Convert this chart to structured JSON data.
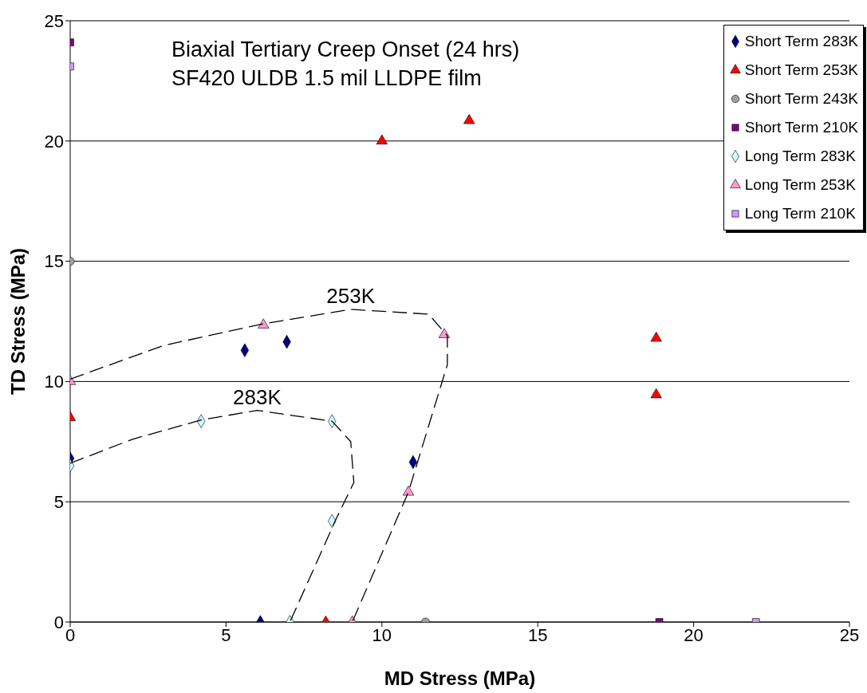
{
  "chart_data": {
    "type": "scatter",
    "title": "Biaxial Tertiary Creep Onset (24 hrs)",
    "subtitle": "SF420 ULDB 1.5 mil LLDPE film",
    "xlabel": "MD Stress (MPa)",
    "ylabel": "TD Stress (MPa)",
    "xlim": [
      0,
      25
    ],
    "xticks": [
      0,
      5,
      10,
      15,
      20,
      25
    ],
    "ylim": [
      0,
      25
    ],
    "yticks": [
      0,
      5,
      10,
      15,
      20,
      25
    ],
    "grid": "y",
    "legend": "top right",
    "series": [
      {
        "name": "Short Term 283K",
        "color": "#000080",
        "marker": "diamond",
        "x": [
          0,
          5.6,
          6.95,
          11.0,
          10.85,
          6.1
        ],
        "values": [
          6.8,
          11.3,
          11.65,
          6.65,
          null,
          0
        ]
      },
      {
        "name": "Short Term 253K",
        "color": "#ff0000",
        "marker": "triangle",
        "x": [
          0,
          10.0,
          12.8,
          18.8,
          18.8,
          8.2
        ],
        "values": [
          8.5,
          20.0,
          20.85,
          11.8,
          9.45,
          0
        ]
      },
      {
        "name": "Short Term 243K",
        "color": "#a0a0a0",
        "marker": "circle",
        "x": [
          0,
          11.4
        ],
        "values": [
          15.0,
          0
        ]
      },
      {
        "name": "Short Term 210K",
        "color": "#800080",
        "marker": "square",
        "x": [
          0,
          18.9
        ],
        "values": [
          24.1,
          0
        ]
      },
      {
        "name": "Long Term 283K",
        "color": "#ccffff",
        "marker": "diamond",
        "x": [
          0,
          4.2,
          8.4,
          8.4,
          7.05
        ],
        "values": [
          6.5,
          8.35,
          8.35,
          4.2,
          0
        ]
      },
      {
        "name": "Long Term 253K",
        "color": "#ff99cc",
        "marker": "triangle",
        "x": [
          0,
          6.2,
          12.0,
          10.85,
          9.05
        ],
        "values": [
          10.0,
          12.35,
          11.95,
          5.4,
          0
        ]
      },
      {
        "name": "Long Term 210K",
        "color": "#cc99ff",
        "marker": "square",
        "x": [
          0,
          22.0
        ],
        "values": [
          23.1,
          0
        ]
      },
      {
        "type": "line",
        "color": "#000000",
        "line_style": "dashed",
        "x": [
          0,
          3,
          6.2,
          9,
          11.5,
          12.1,
          12.1,
          10.85,
          9.05
        ],
        "values": [
          10.1,
          11.5,
          12.4,
          13.0,
          12.8,
          11.9,
          10.7,
          5.4,
          0
        ]
      },
      {
        "type": "line",
        "color": "#000000",
        "line_style": "dashed",
        "x": [
          0,
          2,
          4.2,
          6,
          8.4,
          9,
          9.1,
          8.5,
          7.05
        ],
        "values": [
          6.6,
          7.6,
          8.4,
          8.8,
          8.35,
          7.5,
          5.8,
          4.2,
          0
        ]
      }
    ],
    "annotations": [
      "253K",
      "283K"
    ]
  }
}
